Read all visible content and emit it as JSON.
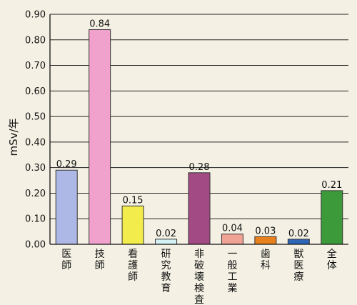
{
  "chart_data": {
    "type": "bar",
    "title": "",
    "xlabel": "",
    "ylabel": "mSv/年",
    "ylim": [
      0,
      0.9
    ],
    "yticks": [
      0.0,
      0.1,
      0.2,
      0.3,
      0.4,
      0.5,
      0.6,
      0.7,
      0.8,
      0.9
    ],
    "ytick_labels": [
      "0.00",
      "0.10",
      "0.20",
      "0.30",
      "0.40",
      "0.50",
      "0.60",
      "0.70",
      "0.80",
      "0.90"
    ],
    "grid": true,
    "categories": [
      "医師",
      "技師",
      "看護師",
      "研究教育",
      "非破壊検査",
      "一般工業",
      "歯科",
      "獣医療",
      "全体"
    ],
    "values": [
      0.29,
      0.84,
      0.15,
      0.02,
      0.28,
      0.04,
      0.03,
      0.02,
      0.21
    ],
    "value_labels": [
      "0.29",
      "0.84",
      "0.15",
      "0.02",
      "0.28",
      "0.04",
      "0.03",
      "0.02",
      "0.21"
    ],
    "colors": [
      "#aeb8e6",
      "#f0a2cc",
      "#f2ec4c",
      "#d4f2f6",
      "#a24a84",
      "#f0a294",
      "#e8801e",
      "#2f67b8",
      "#3d9a3a"
    ]
  }
}
